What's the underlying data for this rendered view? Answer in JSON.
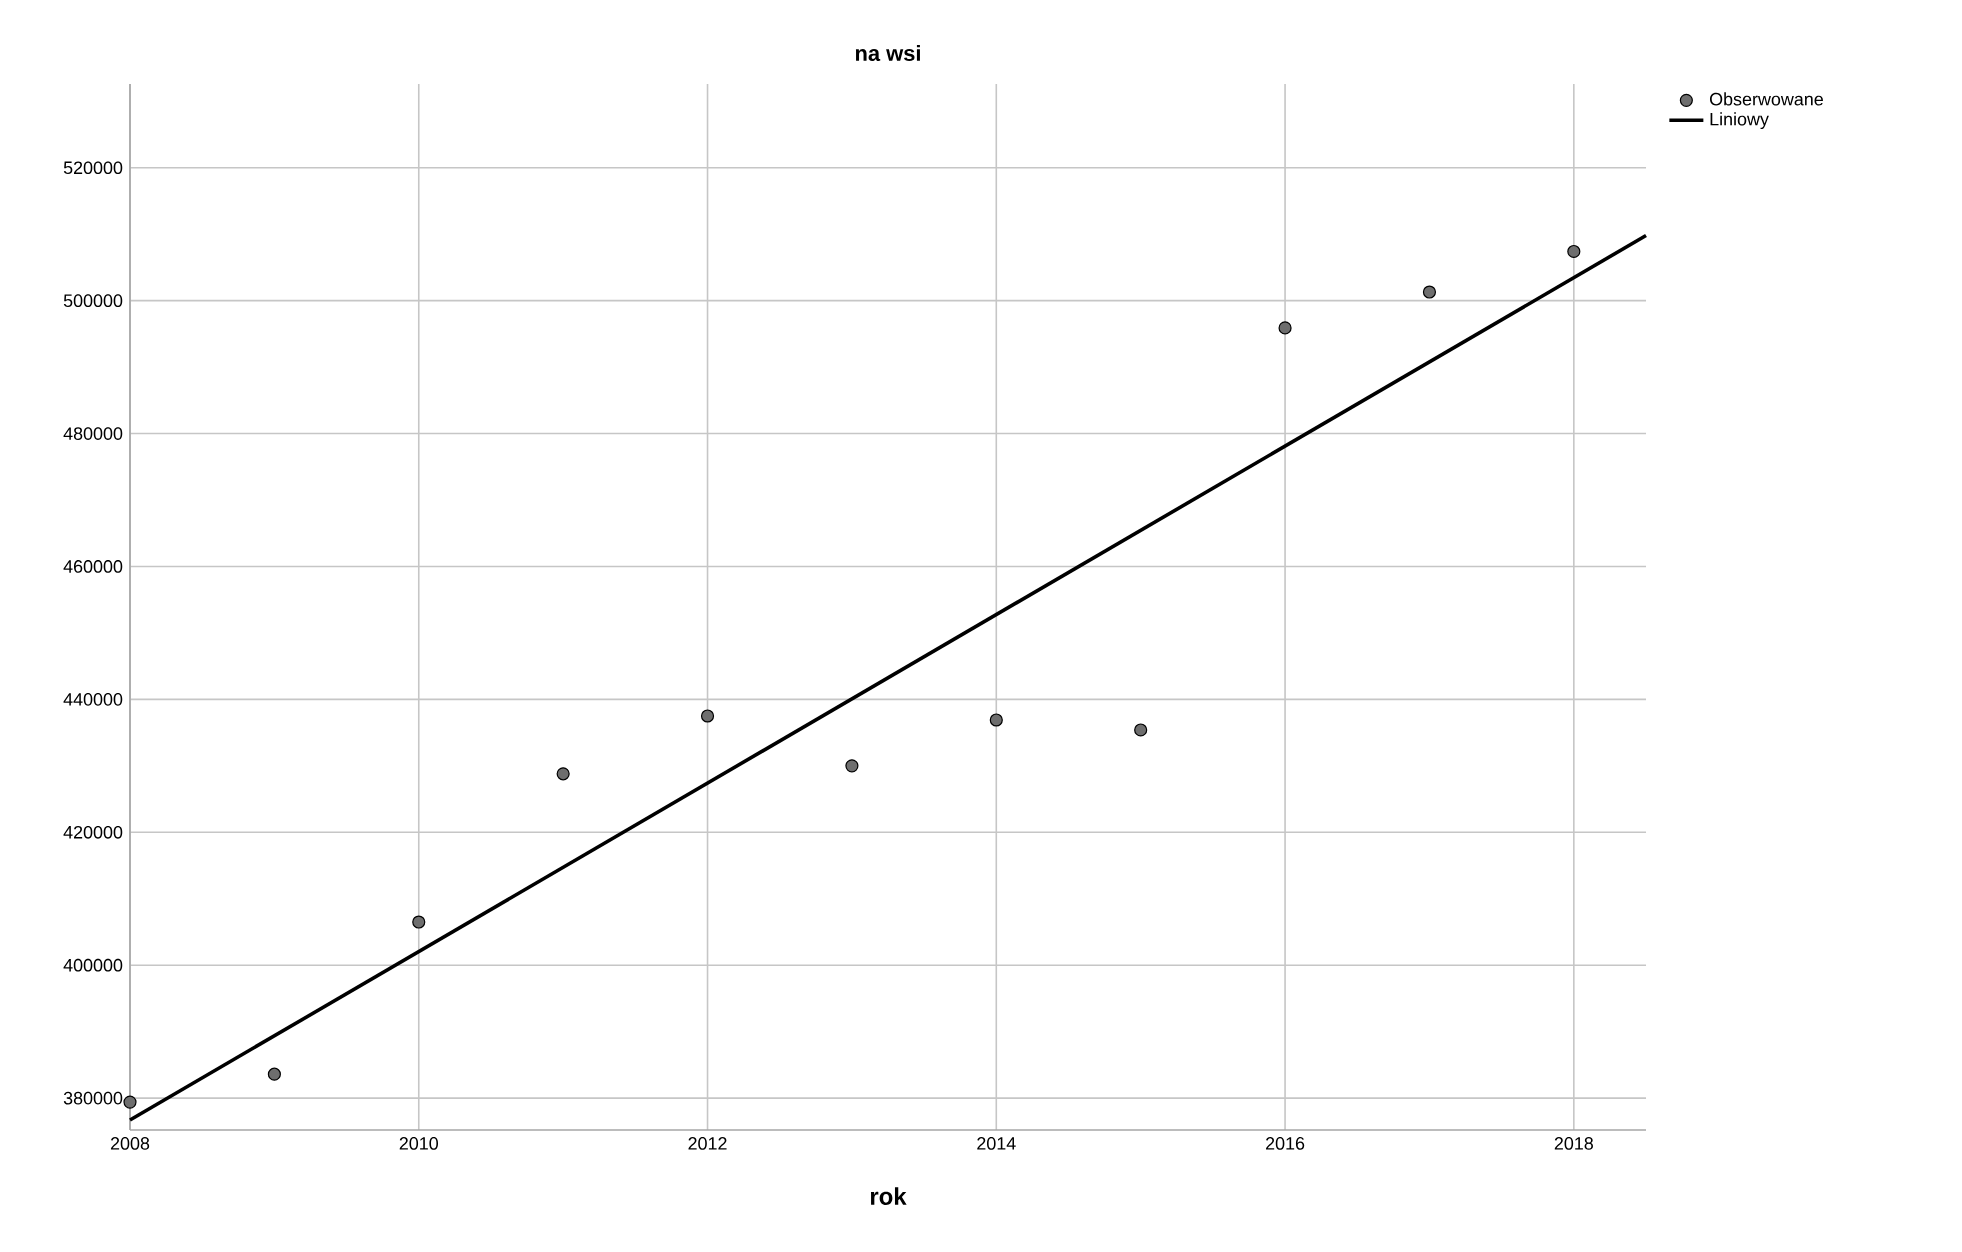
{
  "chart_data": {
    "type": "scatter",
    "title": "na wsi",
    "xlabel": "rok",
    "xlim": [
      2008,
      2018.5
    ],
    "ylim": [
      375200,
      532600
    ],
    "xticks": [
      2008,
      2010,
      2012,
      2014,
      2016,
      2018
    ],
    "yticks": [
      380000,
      400000,
      420000,
      440000,
      460000,
      480000,
      500000,
      520000
    ],
    "grid": true,
    "legend": "top right",
    "series": [
      {
        "name": "Obserwowane",
        "marker": "circle",
        "color": "#6e6e6e",
        "x": [
          2008,
          2009,
          2010,
          2011,
          2012,
          2013,
          2014,
          2015,
          2016,
          2017,
          2018
        ],
        "values": [
          379400,
          383600,
          406500,
          428800,
          437500,
          430000,
          436900,
          435400,
          495900,
          501300,
          507400
        ]
      },
      {
        "name": "Liniowy",
        "type": "line",
        "marker": "none",
        "line_style": "solid",
        "color": "#000000",
        "x": [
          2008,
          2018.5
        ],
        "values": [
          376700,
          509800
        ]
      }
    ]
  }
}
